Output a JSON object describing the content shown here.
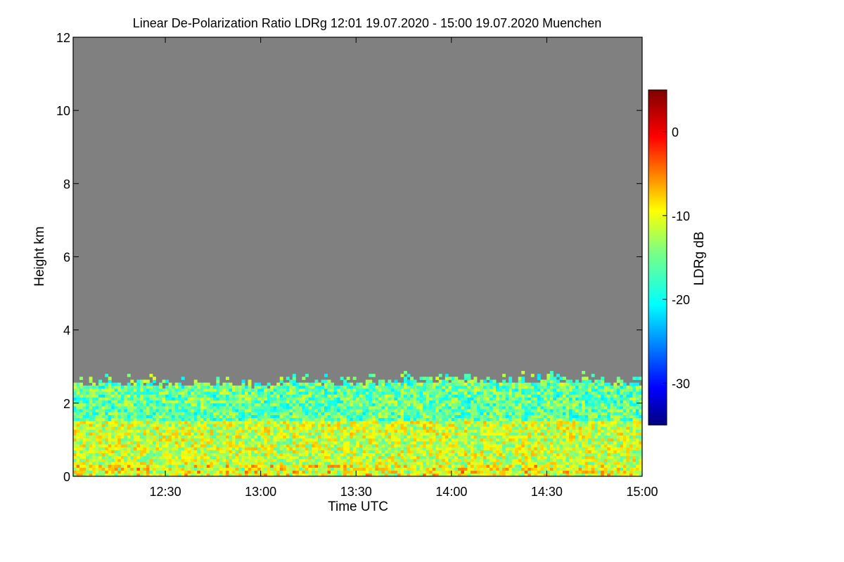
{
  "chart_data": {
    "type": "heatmap",
    "title": "Linear De-Polarization Ratio LDRg   12:01 19.07.2020 - 15:00 19.07.2020 Muenchen",
    "xlabel": "Time UTC",
    "ylabel": "Height km",
    "x_range_minutes_utc": [
      721,
      900
    ],
    "y_range_km": [
      0,
      12
    ],
    "x_ticks": [
      {
        "minute": 750,
        "label": "12:30"
      },
      {
        "minute": 780,
        "label": "13:00"
      },
      {
        "minute": 810,
        "label": "13:30"
      },
      {
        "minute": 840,
        "label": "14:00"
      },
      {
        "minute": 870,
        "label": "14:30"
      },
      {
        "minute": 900,
        "label": "15:00"
      }
    ],
    "y_ticks": [
      {
        "value": 0,
        "label": "0"
      },
      {
        "value": 2,
        "label": "2"
      },
      {
        "value": 4,
        "label": "4"
      },
      {
        "value": 6,
        "label": "6"
      },
      {
        "value": 8,
        "label": "8"
      },
      {
        "value": 10,
        "label": "10"
      },
      {
        "value": 12,
        "label": "12"
      }
    ],
    "no_data_color": "#808080",
    "colorbar": {
      "label": "LDRg dB",
      "range_db": [
        -35,
        5
      ],
      "ticks": [
        {
          "value": 0,
          "label": "0"
        },
        {
          "value": -10,
          "label": "-10"
        },
        {
          "value": -20,
          "label": "-20"
        },
        {
          "value": -30,
          "label": "-30"
        }
      ],
      "colormap": "jet"
    },
    "boundary_layer_top_km": {
      "minutes": [
        721,
        735,
        750,
        765,
        780,
        795,
        810,
        825,
        840,
        855,
        870,
        885,
        900
      ],
      "height_km": [
        2.5,
        2.5,
        2.45,
        2.5,
        2.45,
        2.5,
        2.5,
        2.55,
        2.6,
        2.55,
        2.6,
        2.55,
        2.45
      ]
    },
    "typical_ldr_db": {
      "0_to_1.5km": -12,
      "1.5_to_2.5km": -16
    }
  }
}
